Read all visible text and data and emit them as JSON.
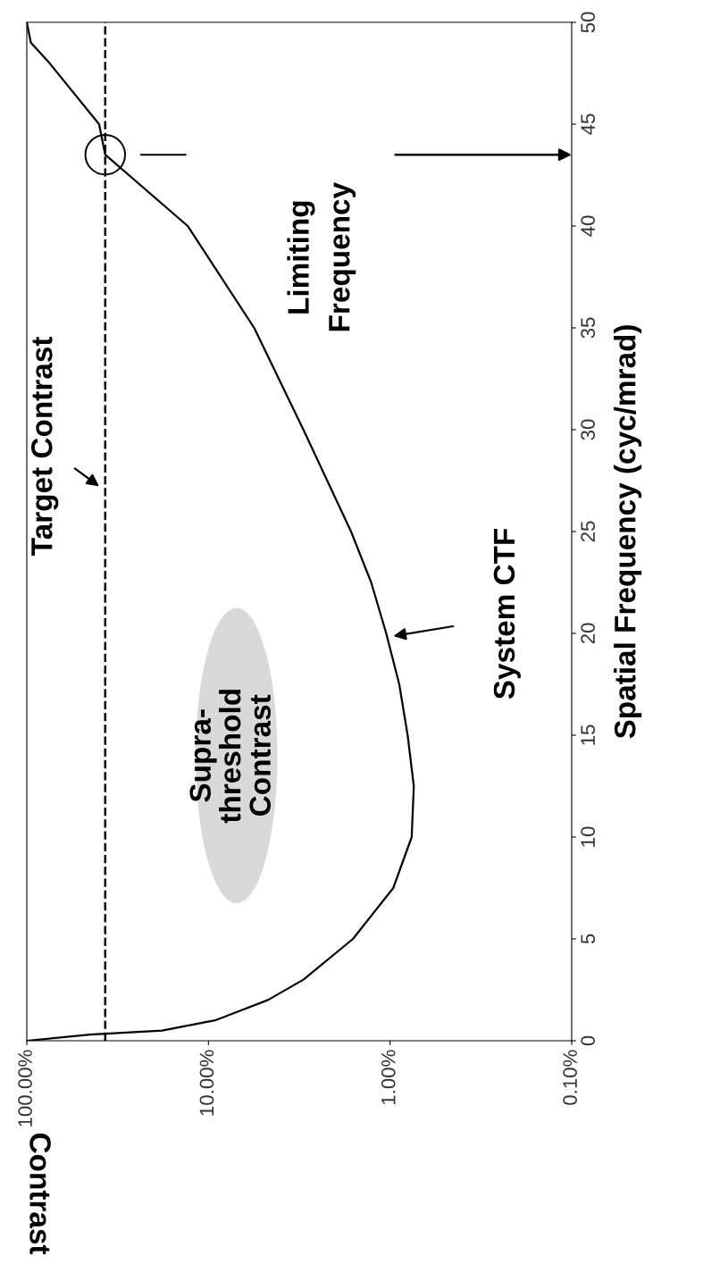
{
  "chart_data": {
    "type": "line",
    "ylabel": "Spatial Frequency (cyc/mrad)",
    "series": [
      {
        "color": "#000000",
        "x": [
          100,
          45,
          18,
          9.2,
          4.7,
          3,
          1.6,
          0.96,
          0.76,
          0.74,
          0.8,
          0.89,
          1.05,
          1.27,
          1.64,
          3,
          5.6,
          13,
          37,
          40,
          75,
          95,
          100
        ],
        "values": [
          0,
          0.3,
          0.5,
          1,
          2,
          3,
          5,
          7.5,
          10,
          12.5,
          15,
          17.5,
          20,
          22.5,
          25,
          30,
          35,
          40,
          43.5,
          45,
          48,
          49,
          50
        ]
      }
    ],
    "xlim": [
      100,
      0.1
    ],
    "xticks": [
      {
        "value": 100,
        "label": "100.00%"
      },
      {
        "value": 10,
        "label": "10.00%"
      },
      {
        "value": 1,
        "label": "1.00%"
      },
      {
        "value": 0.1,
        "label": "0.10%"
      }
    ],
    "ylim": [
      0,
      50
    ],
    "yticks": [
      0,
      5,
      10,
      15,
      20,
      25,
      30,
      35,
      40,
      45,
      50
    ],
    "log": "x",
    "grid": false,
    "legend": false,
    "marker": "none",
    "line_style": "solid",
    "ref_lines": [
      {
        "axis": "x",
        "value": 37,
        "color": "#000000",
        "line_style": "dashed"
      }
    ],
    "annotations": [
      {
        "text": "Target Contrast",
        "x": 37,
        "y": 27
      },
      "System CTF",
      "Limiting\nFrequency",
      "Supra-\nthreshold\nContrast",
      "Contrast"
    ]
  }
}
